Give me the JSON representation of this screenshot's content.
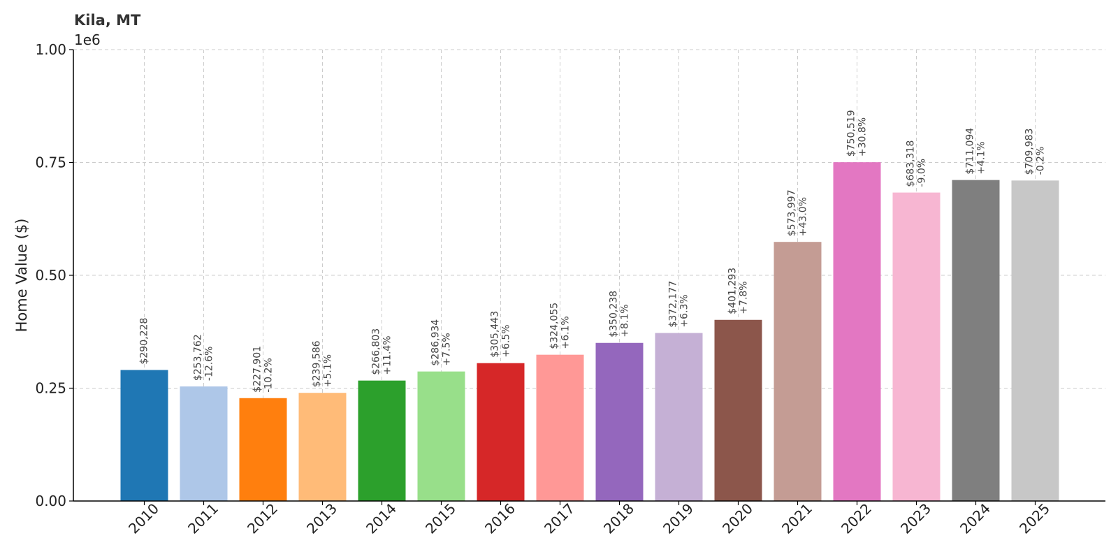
{
  "chart_data": {
    "type": "bar",
    "title": "Kila, MT",
    "ylabel": "Home Value ($)",
    "xlabel": "",
    "y_offset_label": "1e6",
    "ylim": [
      0,
      1000000
    ],
    "yticks": [
      0,
      250000,
      500000,
      750000,
      1000000
    ],
    "ytick_labels": [
      "0.00",
      "0.25",
      "0.50",
      "0.75",
      "1.00"
    ],
    "grid": true,
    "categories": [
      "2010",
      "2011",
      "2012",
      "2013",
      "2014",
      "2015",
      "2016",
      "2017",
      "2018",
      "2019",
      "2020",
      "2021",
      "2022",
      "2023",
      "2024",
      "2025"
    ],
    "values": [
      290228,
      253762,
      227901,
      239586,
      266803,
      286934,
      305443,
      324055,
      350238,
      372177,
      401293,
      573997,
      750519,
      683318,
      711094,
      709983
    ],
    "value_labels": [
      "$290,228",
      "$253,762",
      "$227,901",
      "$239,586",
      "$266,803",
      "$286,934",
      "$305,443",
      "$324,055",
      "$350,238",
      "$372,177",
      "$401,293",
      "$573,997",
      "$750,519",
      "$683,318",
      "$711,094",
      "$709,983"
    ],
    "change_labels": [
      "",
      "-12.6%",
      "-10.2%",
      "+5.1%",
      "+11.4%",
      "+7.5%",
      "+6.5%",
      "+6.1%",
      "+8.1%",
      "+6.3%",
      "+7.8%",
      "+43.0%",
      "+30.8%",
      "-9.0%",
      "+4.1%",
      "-0.2%"
    ],
    "colors": [
      "#1f77b4",
      "#aec7e8",
      "#ff7f0e",
      "#ffbb78",
      "#2ca02c",
      "#98df8a",
      "#d62728",
      "#ff9896",
      "#9467bd",
      "#c5b0d5",
      "#8c564b",
      "#c49c94",
      "#e377c2",
      "#f7b6d2",
      "#7f7f7f",
      "#c7c7c7"
    ]
  }
}
